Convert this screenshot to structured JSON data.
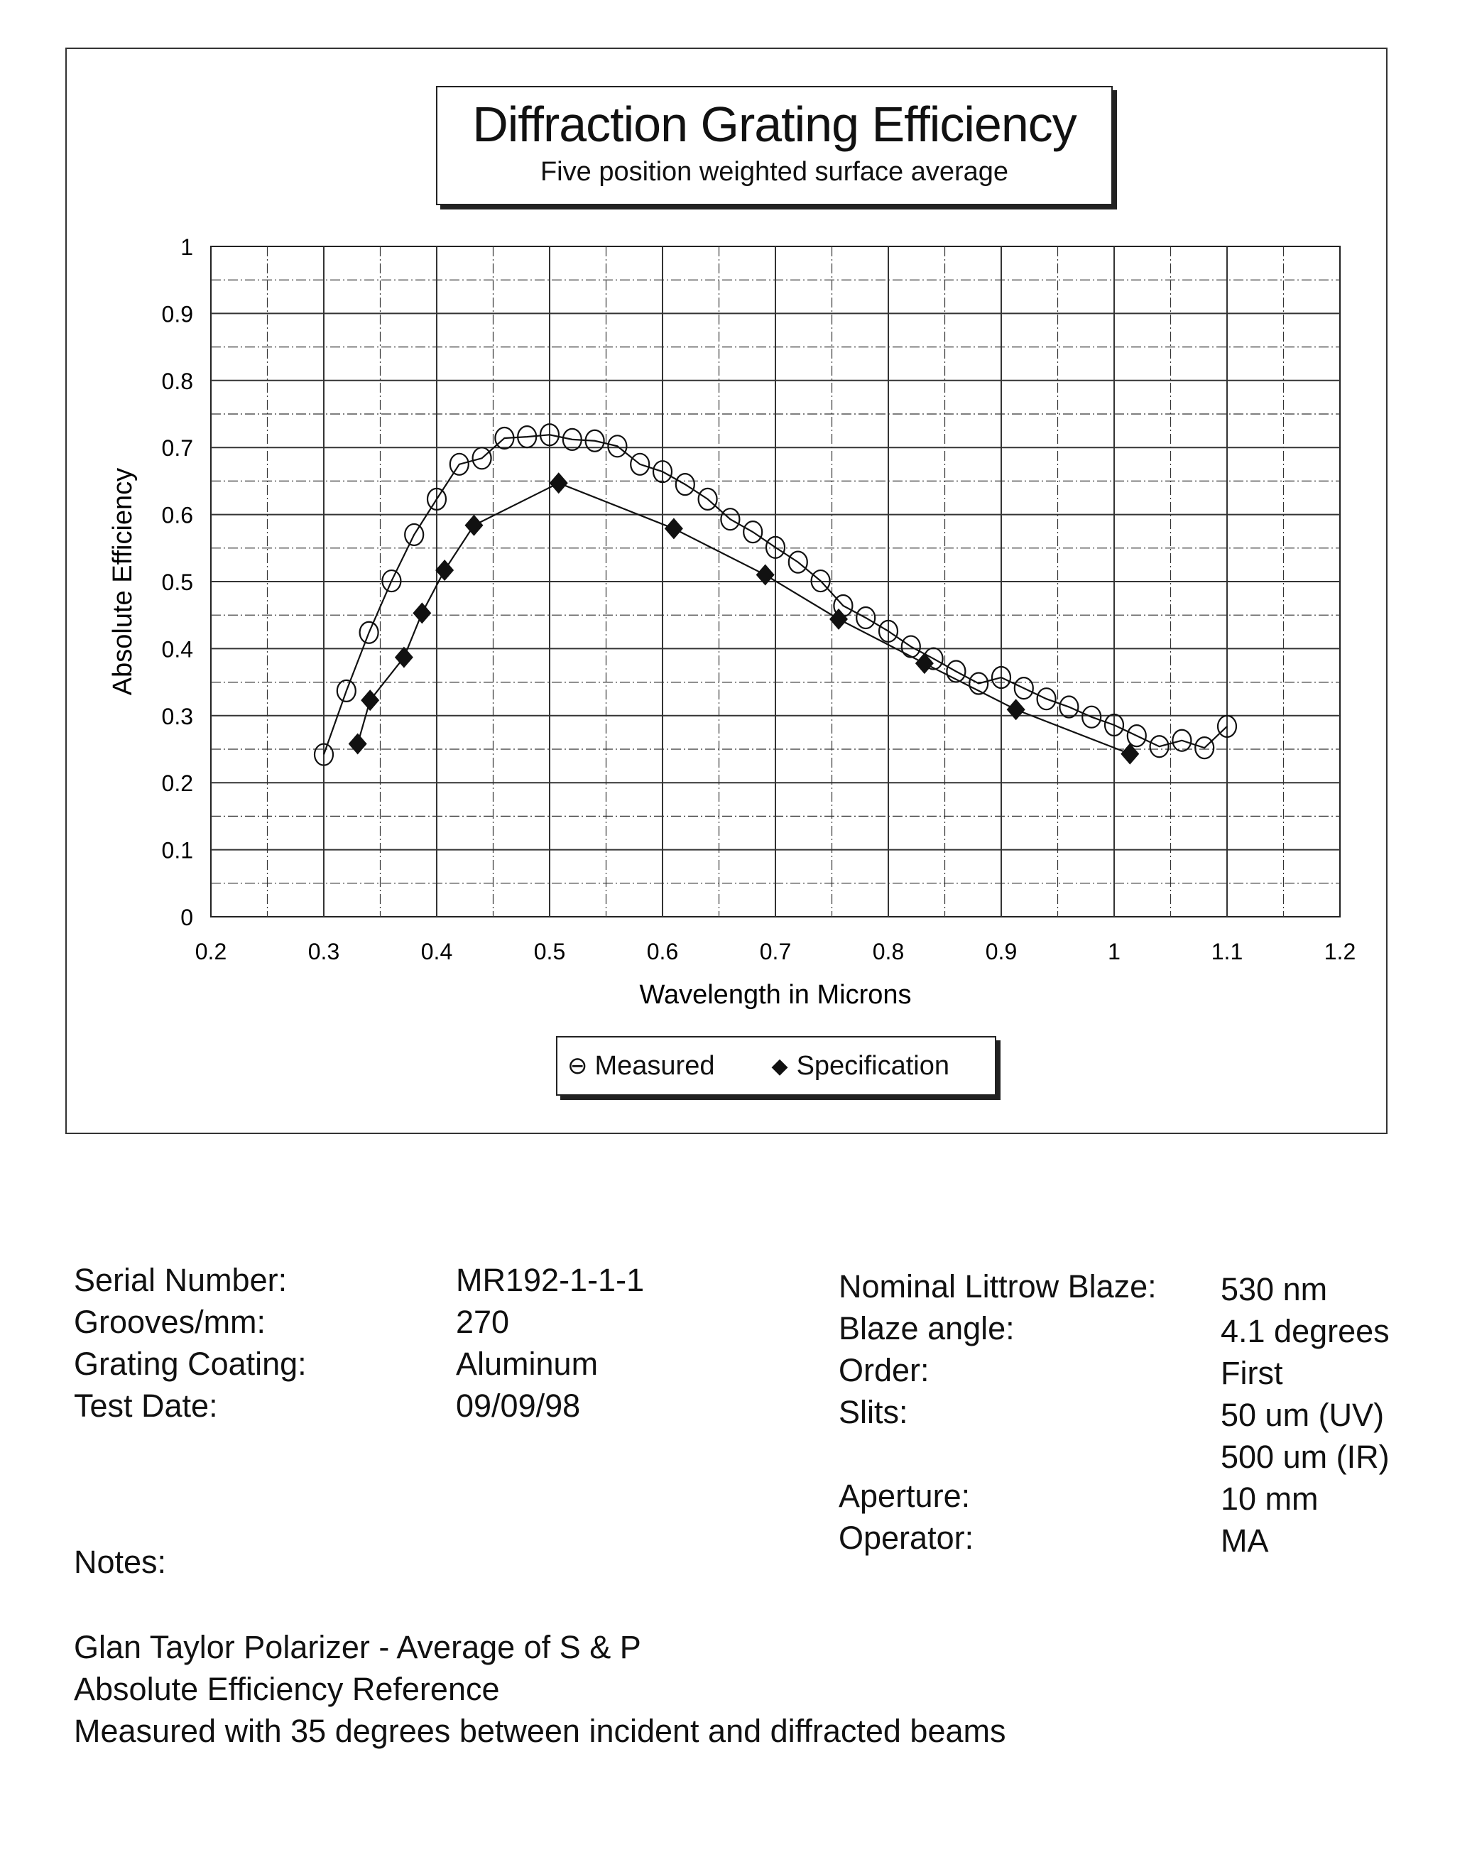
{
  "chart_data": {
    "type": "scatter",
    "title": "Diffraction Grating Efficiency",
    "subtitle": "Five position weighted surface average",
    "xlabel": "Wavelength in Microns",
    "ylabel": "Absolute Efficiency",
    "xlim": [
      0.2,
      1.2
    ],
    "ylim": [
      0,
      1
    ],
    "xticks": [
      "0.2",
      "0.3",
      "0.4",
      "0.5",
      "0.6",
      "0.7",
      "0.8",
      "0.9",
      "1",
      "1.1",
      "1.2"
    ],
    "yticks": [
      "0",
      "0.1",
      "0.2",
      "0.3",
      "0.4",
      "0.5",
      "0.6",
      "0.7",
      "0.8",
      "0.9",
      "1"
    ],
    "grid": true,
    "legend_position": "bottom-center",
    "series": [
      {
        "name": "Measured",
        "marker": "open-circle",
        "x": [
          0.3,
          0.32,
          0.34,
          0.36,
          0.38,
          0.4,
          0.42,
          0.44,
          0.46,
          0.48,
          0.5,
          0.52,
          0.54,
          0.56,
          0.58,
          0.6,
          0.62,
          0.64,
          0.66,
          0.68,
          0.7,
          0.72,
          0.74,
          0.76,
          0.78,
          0.8,
          0.82,
          0.84,
          0.86,
          0.88,
          0.9,
          0.92,
          0.94,
          0.96,
          0.98,
          1.0,
          1.02,
          1.04,
          1.06,
          1.08,
          1.1
        ],
        "y": [
          0.242,
          0.337,
          0.424,
          0.501,
          0.57,
          0.623,
          0.675,
          0.684,
          0.714,
          0.716,
          0.719,
          0.712,
          0.71,
          0.702,
          0.675,
          0.664,
          0.645,
          0.623,
          0.593,
          0.574,
          0.551,
          0.529,
          0.501,
          0.464,
          0.446,
          0.426,
          0.403,
          0.385,
          0.366,
          0.348,
          0.357,
          0.341,
          0.325,
          0.313,
          0.298,
          0.286,
          0.27,
          0.254,
          0.263,
          0.252,
          0.284
        ]
      },
      {
        "name": "Specification",
        "marker": "filled-diamond",
        "x": [
          0.33,
          0.341,
          0.371,
          0.387,
          0.407,
          0.433,
          0.508,
          0.61,
          0.691,
          0.756,
          0.832,
          0.913,
          1.014
        ],
        "y": [
          0.258,
          0.323,
          0.387,
          0.453,
          0.517,
          0.584,
          0.647,
          0.579,
          0.51,
          0.444,
          0.378,
          0.309,
          0.243
        ]
      }
    ]
  },
  "legend": {
    "measured": "Measured",
    "specification": "Specification"
  },
  "info_left": [
    {
      "label": "Serial Number:",
      "value": "MR192-1-1-1"
    },
    {
      "label": "Grooves/mm:",
      "value": "270"
    },
    {
      "label": "Grating Coating:",
      "value": "Aluminum"
    },
    {
      "label": "Test Date:",
      "value": "09/09/98"
    }
  ],
  "info_right": [
    {
      "label": "Nominal Littrow Blaze:",
      "value": "530 nm"
    },
    {
      "label": "Blaze angle:",
      "value": "4.1 degrees"
    },
    {
      "label": "Order:",
      "value": "First"
    },
    {
      "label": "Slits:",
      "value": "50 um (UV)"
    },
    {
      "label": "",
      "value": "500 um (IR)"
    },
    {
      "label": "Aperture:",
      "value": "10 mm"
    },
    {
      "label": "Operator:",
      "value": "MA"
    }
  ],
  "notes": {
    "heading": "Notes:",
    "lines": [
      "Glan Taylor Polarizer - Average of S & P",
      "Absolute Efficiency Reference",
      "Measured with 35 degrees between incident and diffracted beams"
    ]
  }
}
